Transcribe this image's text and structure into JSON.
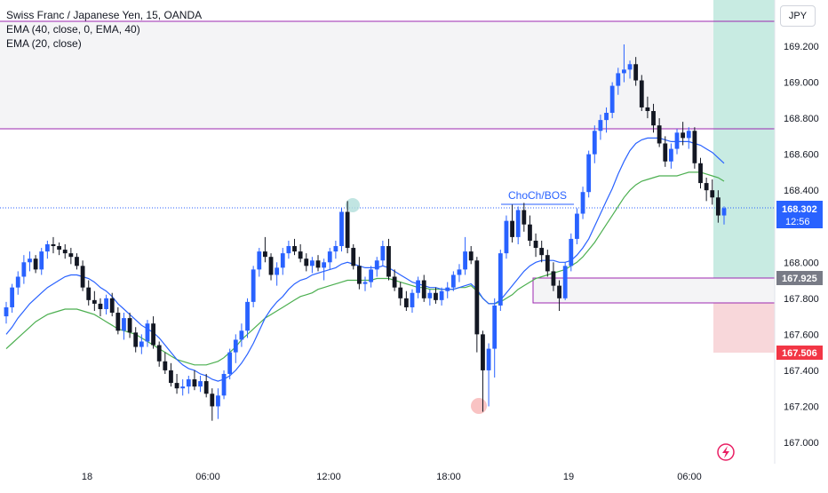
{
  "legend": {
    "symbol": "Swiss Franc / Japanese Yen, 15, OANDA",
    "ema40": "EMA (40, close, 0, EMA, 40)",
    "ema20": "EMA (20, close)"
  },
  "currency": "JPY",
  "colors": {
    "up": "#2962ff",
    "down": "#131722",
    "ema_fast": "#2962ff",
    "ema_slow": "#4caf50",
    "level_line": "#9c27b0",
    "target_zone": "#c8ebe2",
    "stop_zone": "#f8d7da",
    "current_price": "#2962ff",
    "entry_tag": "#787b86",
    "stop_tag": "#f23645",
    "marker_green": "#b2dfdb",
    "marker_red": "#f7b4b4"
  },
  "price_tags": {
    "current": "168.302",
    "timer": "12:56",
    "entry": "167.925",
    "stop": "167.506"
  },
  "annotation": "ChoCh/BOS",
  "chart_data": {
    "type": "candlestick",
    "x_tick_labels": [
      "18",
      "06:00",
      "12:00",
      "18:00",
      "19",
      "06:00"
    ],
    "y_tick_labels": [
      "169.200",
      "169.000",
      "168.800",
      "168.600",
      "168.400",
      "168.000",
      "167.800",
      "167.600",
      "167.400",
      "167.200",
      "167.000"
    ],
    "ylim": [
      166.96,
      169.43
    ],
    "levels": {
      "resistance_top": 169.31,
      "resistance_bottom": 168.74,
      "demand_zone": [
        167.775,
        167.925
      ],
      "current_price": 168.302,
      "target": 169.45,
      "entry": 167.925,
      "stop": 167.506
    },
    "candles_ohlc": [
      [
        167.7,
        167.78,
        167.66,
        167.75
      ],
      [
        167.75,
        167.88,
        167.72,
        167.86
      ],
      [
        167.86,
        167.95,
        167.82,
        167.92
      ],
      [
        167.92,
        168.04,
        167.88,
        168.0
      ],
      [
        168.0,
        168.06,
        167.95,
        168.02
      ],
      [
        168.02,
        168.04,
        167.94,
        167.96
      ],
      [
        167.96,
        168.08,
        167.93,
        168.06
      ],
      [
        168.06,
        168.12,
        168.02,
        168.1
      ],
      [
        168.1,
        168.14,
        168.05,
        168.09
      ],
      [
        168.09,
        168.11,
        168.04,
        168.07
      ],
      [
        168.07,
        168.1,
        168.02,
        168.05
      ],
      [
        168.05,
        168.08,
        167.99,
        168.03
      ],
      [
        168.03,
        168.05,
        167.96,
        167.98
      ],
      [
        167.98,
        168.01,
        167.84,
        167.86
      ],
      [
        167.86,
        167.9,
        167.76,
        167.79
      ],
      [
        167.79,
        167.84,
        167.73,
        167.77
      ],
      [
        167.77,
        167.8,
        167.7,
        167.74
      ],
      [
        167.74,
        167.82,
        167.71,
        167.8
      ],
      [
        167.8,
        167.83,
        167.7,
        167.72
      ],
      [
        167.72,
        167.75,
        167.6,
        167.62
      ],
      [
        167.62,
        167.72,
        167.57,
        167.69
      ],
      [
        167.69,
        167.72,
        167.58,
        167.61
      ],
      [
        167.61,
        167.64,
        167.5,
        167.53
      ],
      [
        167.53,
        167.6,
        167.49,
        167.56
      ],
      [
        167.56,
        167.68,
        167.53,
        167.66
      ],
      [
        167.66,
        167.7,
        167.52,
        167.54
      ],
      [
        167.54,
        167.56,
        167.42,
        167.45
      ],
      [
        167.45,
        167.5,
        167.38,
        167.4
      ],
      [
        167.4,
        167.44,
        167.31,
        167.33
      ],
      [
        167.33,
        167.38,
        167.27,
        167.3
      ],
      [
        167.3,
        167.35,
        167.26,
        167.31
      ],
      [
        167.31,
        167.37,
        167.27,
        167.35
      ],
      [
        167.35,
        167.4,
        167.29,
        167.31
      ],
      [
        167.31,
        167.37,
        167.28,
        167.34
      ],
      [
        167.34,
        167.38,
        167.25,
        167.27
      ],
      [
        167.27,
        167.3,
        167.12,
        167.2
      ],
      [
        167.2,
        167.3,
        167.13,
        167.26
      ],
      [
        167.26,
        167.4,
        167.24,
        167.38
      ],
      [
        167.38,
        167.52,
        167.35,
        167.5
      ],
      [
        167.5,
        167.6,
        167.44,
        167.57
      ],
      [
        167.57,
        167.66,
        167.53,
        167.62
      ],
      [
        167.62,
        167.8,
        167.58,
        167.78
      ],
      [
        167.78,
        167.98,
        167.75,
        167.96
      ],
      [
        167.96,
        168.08,
        167.92,
        168.06
      ],
      [
        168.06,
        168.14,
        168.0,
        168.03
      ],
      [
        168.03,
        168.05,
        167.9,
        167.93
      ],
      [
        167.93,
        168.0,
        167.87,
        167.97
      ],
      [
        167.97,
        168.08,
        167.93,
        168.05
      ],
      [
        168.05,
        168.12,
        168.02,
        168.09
      ],
      [
        168.09,
        168.13,
        168.04,
        168.06
      ],
      [
        168.06,
        168.1,
        168.0,
        168.02
      ],
      [
        168.02,
        168.05,
        167.95,
        167.98
      ],
      [
        167.98,
        168.03,
        167.94,
        168.01
      ],
      [
        168.01,
        168.04,
        167.95,
        167.97
      ],
      [
        167.97,
        168.02,
        167.9,
        168.0
      ],
      [
        168.0,
        168.08,
        167.96,
        168.06
      ],
      [
        168.06,
        168.12,
        168.02,
        168.09
      ],
      [
        168.09,
        168.3,
        168.06,
        168.28
      ],
      [
        168.28,
        168.34,
        168.05,
        168.08
      ],
      [
        168.08,
        168.1,
        167.96,
        167.98
      ],
      [
        167.98,
        168.03,
        167.85,
        167.88
      ],
      [
        167.88,
        167.92,
        167.84,
        167.89
      ],
      [
        167.89,
        167.98,
        167.86,
        167.96
      ],
      [
        167.96,
        168.03,
        167.92,
        168.01
      ],
      [
        168.01,
        168.12,
        167.98,
        168.09
      ],
      [
        168.09,
        168.13,
        167.9,
        167.92
      ],
      [
        167.92,
        167.96,
        167.84,
        167.86
      ],
      [
        167.86,
        167.89,
        167.76,
        167.8
      ],
      [
        167.8,
        167.84,
        167.73,
        167.75
      ],
      [
        167.75,
        167.85,
        167.72,
        167.83
      ],
      [
        167.83,
        167.92,
        167.8,
        167.9
      ],
      [
        167.9,
        167.93,
        167.78,
        167.8
      ],
      [
        167.8,
        167.85,
        167.76,
        167.83
      ],
      [
        167.83,
        167.86,
        167.77,
        167.79
      ],
      [
        167.79,
        167.86,
        167.76,
        167.84
      ],
      [
        167.84,
        167.89,
        167.8,
        167.86
      ],
      [
        167.86,
        167.95,
        167.84,
        167.93
      ],
      [
        167.93,
        167.99,
        167.89,
        167.96
      ],
      [
        167.96,
        168.14,
        167.93,
        168.06
      ],
      [
        168.06,
        168.09,
        167.99,
        168.01
      ],
      [
        168.01,
        168.03,
        167.5,
        167.6
      ],
      [
        167.6,
        167.62,
        167.17,
        167.4
      ],
      [
        167.4,
        167.55,
        167.2,
        167.52
      ],
      [
        167.52,
        167.8,
        167.36,
        167.76
      ],
      [
        167.76,
        168.07,
        167.73,
        168.05
      ],
      [
        168.05,
        168.26,
        168.02,
        168.23
      ],
      [
        168.23,
        168.32,
        168.11,
        168.14
      ],
      [
        168.14,
        168.31,
        168.1,
        168.29
      ],
      [
        168.29,
        168.33,
        168.17,
        168.21
      ],
      [
        168.21,
        168.26,
        168.09,
        168.12
      ],
      [
        168.12,
        168.16,
        168.03,
        168.08
      ],
      [
        168.08,
        168.12,
        168.0,
        168.04
      ],
      [
        168.04,
        168.07,
        167.92,
        167.95
      ],
      [
        167.95,
        168.0,
        167.84,
        167.87
      ],
      [
        167.87,
        167.9,
        167.73,
        167.8
      ],
      [
        167.8,
        168.0,
        167.79,
        167.98
      ],
      [
        167.98,
        168.16,
        167.95,
        168.13
      ],
      [
        168.13,
        168.3,
        168.1,
        168.27
      ],
      [
        168.27,
        168.42,
        168.24,
        168.39
      ],
      [
        168.39,
        168.62,
        168.36,
        168.6
      ],
      [
        168.6,
        168.76,
        168.55,
        168.73
      ],
      [
        168.73,
        168.82,
        168.68,
        168.79
      ],
      [
        168.79,
        168.86,
        168.72,
        168.83
      ],
      [
        168.83,
        169.0,
        168.8,
        168.98
      ],
      [
        168.98,
        169.08,
        168.93,
        169.05
      ],
      [
        169.05,
        169.21,
        169.0,
        169.07
      ],
      [
        169.07,
        169.12,
        169.02,
        169.1
      ],
      [
        169.1,
        169.14,
        168.98,
        169.01
      ],
      [
        169.01,
        169.04,
        168.84,
        168.86
      ],
      [
        168.86,
        168.92,
        168.8,
        168.84
      ],
      [
        168.84,
        168.88,
        168.72,
        168.76
      ],
      [
        168.76,
        168.8,
        168.64,
        168.66
      ],
      [
        168.66,
        168.7,
        168.53,
        168.56
      ],
      [
        168.56,
        168.66,
        168.52,
        168.63
      ],
      [
        168.63,
        168.74,
        168.6,
        168.72
      ],
      [
        168.72,
        168.78,
        168.65,
        168.69
      ],
      [
        168.69,
        168.75,
        168.63,
        168.73
      ],
      [
        168.73,
        168.75,
        168.52,
        168.55
      ],
      [
        168.55,
        168.58,
        168.41,
        168.44
      ],
      [
        168.44,
        168.47,
        168.34,
        168.4
      ],
      [
        168.4,
        168.46,
        168.32,
        168.36
      ],
      [
        168.36,
        168.4,
        168.22,
        168.26
      ],
      [
        168.26,
        168.31,
        168.21,
        168.3
      ]
    ],
    "ema_fast": [
      167.6,
      167.64,
      167.69,
      167.73,
      167.77,
      167.8,
      167.83,
      167.86,
      167.88,
      167.9,
      167.92,
      167.93,
      167.93,
      167.92,
      167.91,
      167.89,
      167.86,
      167.84,
      167.81,
      167.77,
      167.74,
      167.71,
      167.68,
      167.65,
      167.63,
      167.61,
      167.58,
      167.54,
      167.5,
      167.46,
      167.43,
      167.41,
      167.4,
      167.38,
      167.37,
      167.35,
      167.34,
      167.35,
      167.37,
      167.4,
      167.44,
      167.49,
      167.55,
      167.62,
      167.69,
      167.74,
      167.78,
      167.81,
      167.85,
      167.88,
      167.9,
      167.91,
      167.93,
      167.94,
      167.95,
      167.96,
      167.97,
      167.99,
      168.0,
      167.99,
      167.98,
      167.97,
      167.97,
      167.97,
      167.98,
      167.97,
      167.95,
      167.93,
      167.91,
      167.89,
      167.88,
      167.87,
      167.86,
      167.86,
      167.85,
      167.85,
      167.85,
      167.86,
      167.87,
      167.88,
      167.85,
      167.8,
      167.77,
      167.77,
      167.79,
      167.83,
      167.87,
      167.91,
      167.95,
      167.98,
      168.0,
      168.01,
      168.01,
      168.01,
      168.0,
      168.0,
      168.01,
      168.04,
      168.08,
      168.13,
      168.2,
      168.27,
      168.34,
      168.41,
      168.49,
      168.56,
      168.62,
      168.66,
      168.68,
      168.69,
      168.69,
      168.69,
      168.68,
      168.67,
      168.67,
      168.67,
      168.67,
      168.66,
      168.65,
      168.63,
      168.61,
      168.58,
      168.55
    ],
    "ema_slow": [
      167.52,
      167.55,
      167.58,
      167.61,
      167.64,
      167.67,
      167.69,
      167.71,
      167.72,
      167.73,
      167.74,
      167.74,
      167.74,
      167.73,
      167.72,
      167.71,
      167.69,
      167.67,
      167.65,
      167.63,
      167.62,
      167.61,
      167.6,
      167.58,
      167.56,
      167.54,
      167.52,
      167.5,
      167.48,
      167.46,
      167.45,
      167.44,
      167.43,
      167.43,
      167.43,
      167.44,
      167.45,
      167.47,
      167.5,
      167.53,
      167.57,
      167.6,
      167.63,
      167.66,
      167.69,
      167.71,
      167.73,
      167.75,
      167.77,
      167.79,
      167.81,
      167.82,
      167.83,
      167.85,
      167.86,
      167.87,
      167.88,
      167.89,
      167.9,
      167.9,
      167.9,
      167.9,
      167.9,
      167.91,
      167.91,
      167.91,
      167.9,
      167.89,
      167.88,
      167.87,
      167.86,
      167.86,
      167.85,
      167.85,
      167.85,
      167.85,
      167.85,
      167.86,
      167.86,
      167.87,
      167.84,
      167.8,
      167.77,
      167.77,
      167.78,
      167.8,
      167.82,
      167.85,
      167.87,
      167.89,
      167.91,
      167.92,
      167.93,
      167.94,
      167.95,
      167.96,
      167.98,
      168.0,
      168.03,
      168.07,
      168.11,
      168.16,
      168.21,
      168.26,
      168.31,
      168.36,
      168.4,
      168.43,
      168.45,
      168.46,
      168.47,
      168.48,
      168.48,
      168.48,
      168.48,
      168.49,
      168.5,
      168.5,
      168.5,
      168.49,
      168.48,
      168.47,
      168.45
    ]
  }
}
